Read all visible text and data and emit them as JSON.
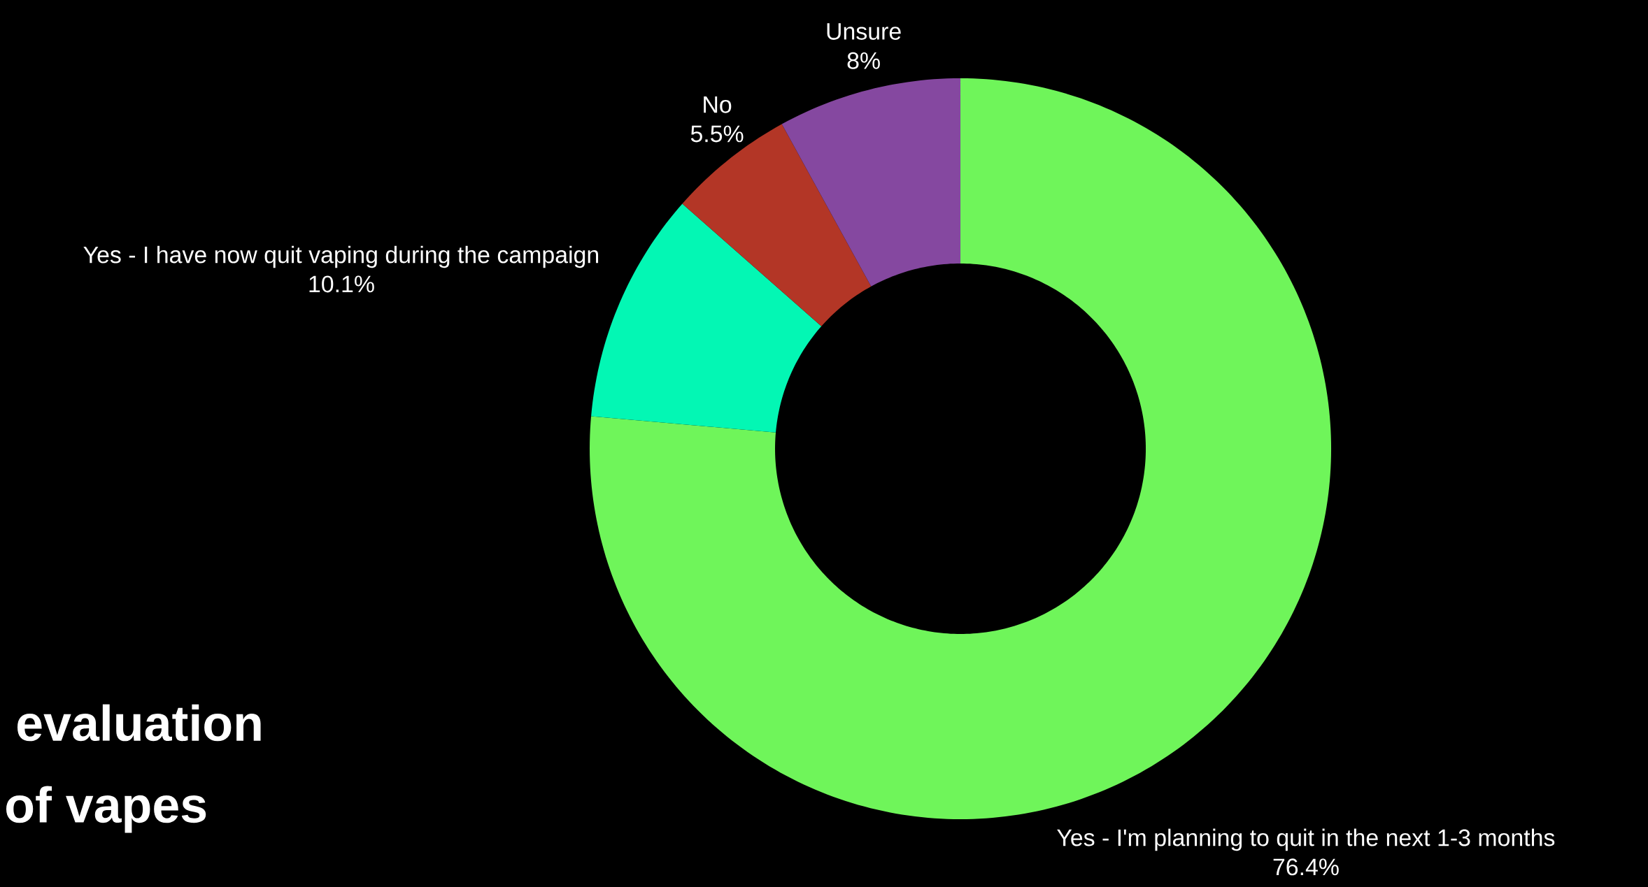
{
  "chart_data": {
    "type": "donut",
    "categories": [
      "Yes - I'm planning to quit in the next 1-3 months",
      "Yes - I have now quit vaping during the campaign",
      "No",
      "Unsure"
    ],
    "values": [
      76.4,
      10.1,
      5.5,
      8
    ],
    "colors": [
      "#6ff55a",
      "#03f7b4",
      "#b33626",
      "#8548a0"
    ],
    "value_labels": [
      "76.4%",
      "10.1%",
      "5.5%",
      "8%"
    ],
    "annotations": [
      "evaluation",
      "of vapes"
    ]
  }
}
